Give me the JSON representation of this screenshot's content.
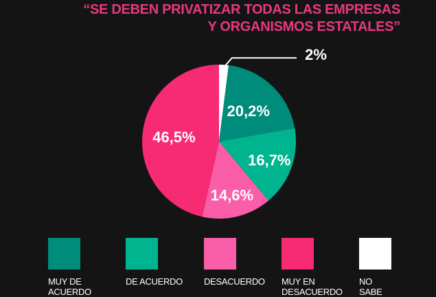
{
  "chart_data": {
    "type": "pie",
    "title_line1": "“SE DEBEN PRIVATIZAR TODAS LAS EMPRESAS",
    "title_line2": "Y ORGANISMOS ESTATALES”",
    "slices": [
      {
        "name": "NO SABE",
        "value": 2,
        "label": "2%",
        "color": "#ffffff"
      },
      {
        "name": "MUY DE ACUERDO",
        "value": 20.2,
        "label": "20,2%",
        "color": "#008c7b"
      },
      {
        "name": "DE ACUERDO",
        "value": 16.7,
        "label": "16,7%",
        "color": "#00b48f"
      },
      {
        "name": "DESACUERDO",
        "value": 14.6,
        "label": "14,6%",
        "color": "#fb5ea8"
      },
      {
        "name": "MUY EN DESACUERDO",
        "value": 46.5,
        "label": "46,5%",
        "color": "#f72a74"
      }
    ],
    "start": "top",
    "direction": "clockwise",
    "legend": {
      "placement": "bottom",
      "items": [
        {
          "label": "MUY DE\nACUERDO",
          "color": "#008c7b"
        },
        {
          "label": "DE ACUERDO",
          "color": "#00b48f"
        },
        {
          "label": "DESACUERDO",
          "color": "#fb5ea8"
        },
        {
          "label": "MUY EN\nDESACUERDO",
          "color": "#f72a74"
        },
        {
          "label": "NO\nSABE",
          "color": "#ffffff"
        }
      ]
    }
  }
}
